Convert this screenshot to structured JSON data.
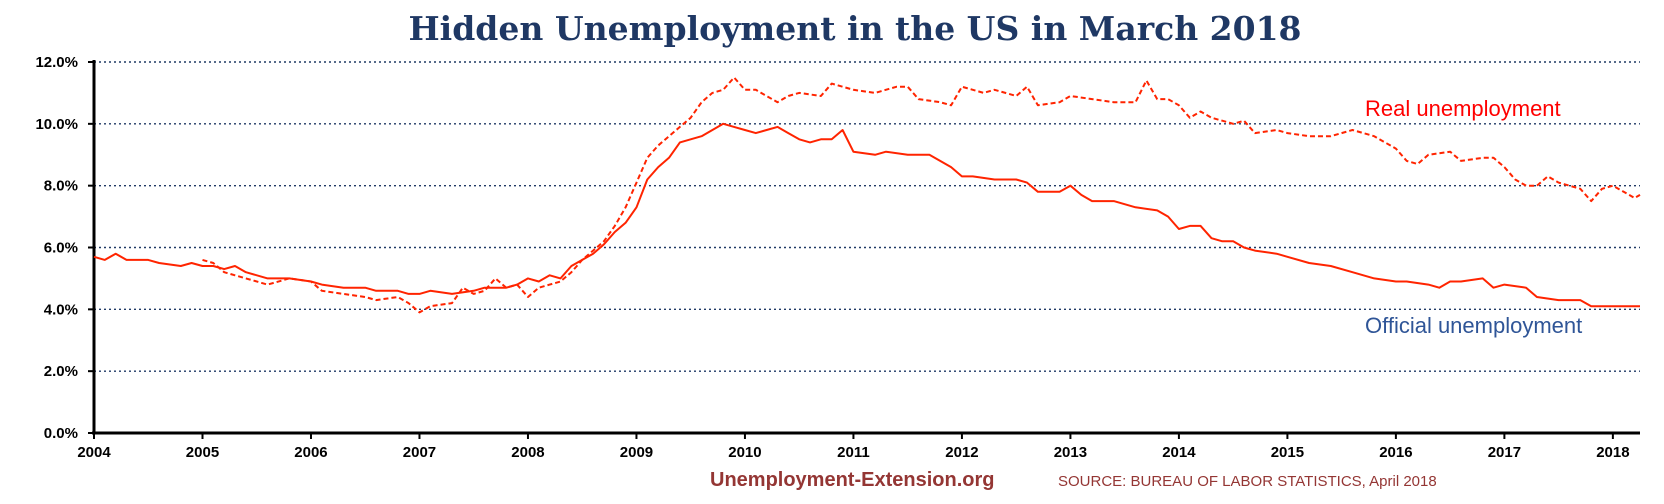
{
  "chart_data": {
    "type": "line",
    "title": "Hidden Unemployment in the US in March 2018",
    "xlabel": "",
    "ylabel": "",
    "ylim": [
      0,
      12
    ],
    "xlim": [
      2004.0,
      2018.25
    ],
    "y_ticks": [
      "0.0%",
      "2.0%",
      "4.0%",
      "6.0%",
      "8.0%",
      "10.0%",
      "12.0%"
    ],
    "y_tick_values": [
      0,
      2,
      4,
      6,
      8,
      10,
      12
    ],
    "x_ticks": [
      "2004",
      "2005",
      "2006",
      "2007",
      "2008",
      "2009",
      "2010",
      "2011",
      "2012",
      "2013",
      "2014",
      "2015",
      "2016",
      "2017",
      "2018"
    ],
    "x_tick_values": [
      2004,
      2005,
      2006,
      2007,
      2008,
      2009,
      2010,
      2011,
      2012,
      2013,
      2014,
      2015,
      2016,
      2017,
      2018
    ],
    "grid": true,
    "series": [
      {
        "name": "Official unemployment",
        "color": "#ff2400",
        "dash": "solid",
        "points": [
          [
            2004.0,
            5.7
          ],
          [
            2004.1,
            5.6
          ],
          [
            2004.2,
            5.8
          ],
          [
            2004.3,
            5.6
          ],
          [
            2004.5,
            5.6
          ],
          [
            2004.6,
            5.5
          ],
          [
            2004.8,
            5.4
          ],
          [
            2004.9,
            5.5
          ],
          [
            2005.0,
            5.4
          ],
          [
            2005.1,
            5.4
          ],
          [
            2005.2,
            5.3
          ],
          [
            2005.3,
            5.4
          ],
          [
            2005.4,
            5.2
          ],
          [
            2005.6,
            5.0
          ],
          [
            2005.8,
            5.0
          ],
          [
            2006.0,
            4.9
          ],
          [
            2006.1,
            4.8
          ],
          [
            2006.3,
            4.7
          ],
          [
            2006.5,
            4.7
          ],
          [
            2006.6,
            4.6
          ],
          [
            2006.8,
            4.6
          ],
          [
            2006.9,
            4.5
          ],
          [
            2007.0,
            4.5
          ],
          [
            2007.1,
            4.6
          ],
          [
            2007.3,
            4.5
          ],
          [
            2007.5,
            4.6
          ],
          [
            2007.6,
            4.7
          ],
          [
            2007.8,
            4.7
          ],
          [
            2007.9,
            4.8
          ],
          [
            2008.0,
            5.0
          ],
          [
            2008.1,
            4.9
          ],
          [
            2008.2,
            5.1
          ],
          [
            2008.3,
            5.0
          ],
          [
            2008.4,
            5.4
          ],
          [
            2008.5,
            5.6
          ],
          [
            2008.6,
            5.8
          ],
          [
            2008.7,
            6.1
          ],
          [
            2008.8,
            6.5
          ],
          [
            2008.9,
            6.8
          ],
          [
            2009.0,
            7.3
          ],
          [
            2009.1,
            8.2
          ],
          [
            2009.2,
            8.6
          ],
          [
            2009.3,
            8.9
          ],
          [
            2009.4,
            9.4
          ],
          [
            2009.5,
            9.5
          ],
          [
            2009.6,
            9.6
          ],
          [
            2009.7,
            9.8
          ],
          [
            2009.8,
            10.0
          ],
          [
            2009.9,
            9.9
          ],
          [
            2010.0,
            9.8
          ],
          [
            2010.1,
            9.7
          ],
          [
            2010.2,
            9.8
          ],
          [
            2010.3,
            9.9
          ],
          [
            2010.4,
            9.7
          ],
          [
            2010.5,
            9.5
          ],
          [
            2010.6,
            9.4
          ],
          [
            2010.7,
            9.5
          ],
          [
            2010.8,
            9.5
          ],
          [
            2010.9,
            9.8
          ],
          [
            2011.0,
            9.1
          ],
          [
            2011.2,
            9.0
          ],
          [
            2011.3,
            9.1
          ],
          [
            2011.5,
            9.0
          ],
          [
            2011.7,
            9.0
          ],
          [
            2011.9,
            8.6
          ],
          [
            2012.0,
            8.3
          ],
          [
            2012.1,
            8.3
          ],
          [
            2012.3,
            8.2
          ],
          [
            2012.5,
            8.2
          ],
          [
            2012.6,
            8.1
          ],
          [
            2012.7,
            7.8
          ],
          [
            2012.9,
            7.8
          ],
          [
            2013.0,
            8.0
          ],
          [
            2013.1,
            7.7
          ],
          [
            2013.2,
            7.5
          ],
          [
            2013.4,
            7.5
          ],
          [
            2013.6,
            7.3
          ],
          [
            2013.8,
            7.2
          ],
          [
            2013.9,
            7.0
          ],
          [
            2014.0,
            6.6
          ],
          [
            2014.1,
            6.7
          ],
          [
            2014.2,
            6.7
          ],
          [
            2014.3,
            6.3
          ],
          [
            2014.4,
            6.2
          ],
          [
            2014.5,
            6.2
          ],
          [
            2014.6,
            6.0
          ],
          [
            2014.7,
            5.9
          ],
          [
            2014.9,
            5.8
          ],
          [
            2015.0,
            5.7
          ],
          [
            2015.2,
            5.5
          ],
          [
            2015.4,
            5.4
          ],
          [
            2015.6,
            5.2
          ],
          [
            2015.8,
            5.0
          ],
          [
            2016.0,
            4.9
          ],
          [
            2016.1,
            4.9
          ],
          [
            2016.3,
            4.8
          ],
          [
            2016.4,
            4.7
          ],
          [
            2016.5,
            4.9
          ],
          [
            2016.6,
            4.9
          ],
          [
            2016.8,
            5.0
          ],
          [
            2016.9,
            4.7
          ],
          [
            2017.0,
            4.8
          ],
          [
            2017.2,
            4.7
          ],
          [
            2017.3,
            4.4
          ],
          [
            2017.5,
            4.3
          ],
          [
            2017.6,
            4.3
          ],
          [
            2017.7,
            4.3
          ],
          [
            2017.8,
            4.1
          ],
          [
            2018.0,
            4.1
          ],
          [
            2018.25,
            4.1
          ]
        ]
      },
      {
        "name": "Real unemployment",
        "color": "#ff2400",
        "dash": "dashed",
        "points": [
          [
            2005.0,
            5.6
          ],
          [
            2005.1,
            5.5
          ],
          [
            2005.2,
            5.2
          ],
          [
            2005.3,
            5.1
          ],
          [
            2005.4,
            5.0
          ],
          [
            2005.6,
            4.8
          ],
          [
            2005.8,
            5.0
          ],
          [
            2006.0,
            4.9
          ],
          [
            2006.1,
            4.6
          ],
          [
            2006.3,
            4.5
          ],
          [
            2006.5,
            4.4
          ],
          [
            2006.6,
            4.3
          ],
          [
            2006.8,
            4.4
          ],
          [
            2006.9,
            4.2
          ],
          [
            2007.0,
            3.9
          ],
          [
            2007.1,
            4.1
          ],
          [
            2007.3,
            4.2
          ],
          [
            2007.4,
            4.7
          ],
          [
            2007.5,
            4.5
          ],
          [
            2007.6,
            4.6
          ],
          [
            2007.7,
            5.0
          ],
          [
            2007.8,
            4.7
          ],
          [
            2007.9,
            4.8
          ],
          [
            2008.0,
            4.4
          ],
          [
            2008.1,
            4.7
          ],
          [
            2008.2,
            4.8
          ],
          [
            2008.3,
            4.9
          ],
          [
            2008.4,
            5.2
          ],
          [
            2008.5,
            5.6
          ],
          [
            2008.6,
            5.9
          ],
          [
            2008.7,
            6.2
          ],
          [
            2008.8,
            6.7
          ],
          [
            2008.9,
            7.3
          ],
          [
            2009.0,
            8.1
          ],
          [
            2009.1,
            8.9
          ],
          [
            2009.2,
            9.3
          ],
          [
            2009.3,
            9.6
          ],
          [
            2009.4,
            9.9
          ],
          [
            2009.5,
            10.2
          ],
          [
            2009.6,
            10.7
          ],
          [
            2009.7,
            11.0
          ],
          [
            2009.8,
            11.1
          ],
          [
            2009.9,
            11.5
          ],
          [
            2010.0,
            11.1
          ],
          [
            2010.1,
            11.1
          ],
          [
            2010.2,
            10.9
          ],
          [
            2010.3,
            10.7
          ],
          [
            2010.4,
            10.9
          ],
          [
            2010.5,
            11.0
          ],
          [
            2010.7,
            10.9
          ],
          [
            2010.8,
            11.3
          ],
          [
            2011.0,
            11.1
          ],
          [
            2011.2,
            11.0
          ],
          [
            2011.4,
            11.2
          ],
          [
            2011.5,
            11.2
          ],
          [
            2011.6,
            10.8
          ],
          [
            2011.8,
            10.7
          ],
          [
            2011.9,
            10.6
          ],
          [
            2012.0,
            11.2
          ],
          [
            2012.1,
            11.1
          ],
          [
            2012.2,
            11.0
          ],
          [
            2012.3,
            11.1
          ],
          [
            2012.5,
            10.9
          ],
          [
            2012.6,
            11.2
          ],
          [
            2012.7,
            10.6
          ],
          [
            2012.9,
            10.7
          ],
          [
            2013.0,
            10.9
          ],
          [
            2013.2,
            10.8
          ],
          [
            2013.4,
            10.7
          ],
          [
            2013.6,
            10.7
          ],
          [
            2013.7,
            11.4
          ],
          [
            2013.8,
            10.8
          ],
          [
            2013.9,
            10.8
          ],
          [
            2014.0,
            10.6
          ],
          [
            2014.1,
            10.2
          ],
          [
            2014.2,
            10.4
          ],
          [
            2014.3,
            10.2
          ],
          [
            2014.5,
            10.0
          ],
          [
            2014.6,
            10.1
          ],
          [
            2014.7,
            9.7
          ],
          [
            2014.9,
            9.8
          ],
          [
            2015.0,
            9.7
          ],
          [
            2015.2,
            9.6
          ],
          [
            2015.4,
            9.6
          ],
          [
            2015.6,
            9.8
          ],
          [
            2015.8,
            9.6
          ],
          [
            2015.9,
            9.4
          ],
          [
            2016.0,
            9.2
          ],
          [
            2016.1,
            8.8
          ],
          [
            2016.2,
            8.7
          ],
          [
            2016.3,
            9.0
          ],
          [
            2016.5,
            9.1
          ],
          [
            2016.6,
            8.8
          ],
          [
            2016.8,
            8.9
          ],
          [
            2016.9,
            8.9
          ],
          [
            2017.0,
            8.6
          ],
          [
            2017.1,
            8.2
          ],
          [
            2017.2,
            8.0
          ],
          [
            2017.3,
            8.0
          ],
          [
            2017.4,
            8.3
          ],
          [
            2017.5,
            8.1
          ],
          [
            2017.6,
            8.0
          ],
          [
            2017.7,
            7.9
          ],
          [
            2017.8,
            7.5
          ],
          [
            2017.9,
            7.9
          ],
          [
            2018.0,
            8.0
          ],
          [
            2018.1,
            7.8
          ],
          [
            2018.2,
            7.6
          ],
          [
            2018.25,
            7.7
          ]
        ]
      }
    ],
    "annotations": {
      "real_label": "Real unemployment",
      "official_label": "Official unemployment",
      "site": "Unemployment-Extension.org",
      "source": "SOURCE: BUREAU OF LABOR STATISTICS, April 2018"
    }
  }
}
